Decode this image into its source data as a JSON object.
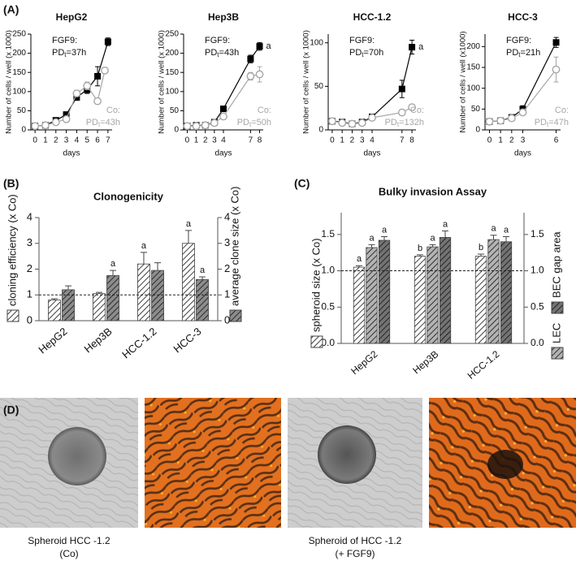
{
  "panel_labels": [
    "(A)",
    "(B)",
    "(C)",
    "(D)"
  ],
  "chart_data": [
    {
      "type": "line",
      "title": "HepG2",
      "x_label": "days",
      "y_label": "Number of cells / well (x 1000)",
      "xlim": [
        -0.4,
        7.4
      ],
      "xticks": [
        0,
        1,
        2,
        3,
        4,
        5,
        6,
        7
      ],
      "ylim": [
        0,
        250
      ],
      "yticks": [
        0,
        50,
        100,
        150,
        200,
        250
      ],
      "series": [
        {
          "name": "FGF9:",
          "pd": "PD",
          "pd_sub": "t",
          "pd_value": "=37h",
          "color": "#000000",
          "marker": "square",
          "x": [
            0,
            1,
            2,
            3,
            4,
            5,
            6,
            7
          ],
          "values": [
            10,
            12,
            25,
            40,
            85,
            105,
            140,
            230
          ],
          "errors": [
            3,
            3,
            5,
            5,
            8,
            10,
            25,
            10
          ]
        },
        {
          "name": "Co:",
          "pd": "PD",
          "pd_sub": "t",
          "pd_value": "=43h",
          "color": "#a6a6a6",
          "marker": "circle",
          "x": [
            0,
            1,
            2,
            3,
            4,
            5,
            6,
            6.7
          ],
          "values": [
            10,
            12,
            20,
            28,
            95,
            115,
            75,
            155
          ],
          "errors": [
            3,
            3,
            3,
            4,
            8,
            10,
            5,
            8
          ]
        }
      ]
    },
    {
      "type": "line",
      "title": "Hep3B",
      "x_label": "days",
      "y_label": "Number of cells / well (x 1000)",
      "xlim": [
        -0.4,
        8.4
      ],
      "xticks": [
        0,
        1,
        2,
        3,
        4,
        7,
        8
      ],
      "ylim": [
        0,
        250
      ],
      "yticks": [
        0,
        50,
        100,
        150,
        200,
        250
      ],
      "series": [
        {
          "name": "FGF9:",
          "pd": "PD",
          "pd_sub": "t",
          "pd_value": "=43h",
          "color": "#000000",
          "marker": "square",
          "end_label": "a",
          "x": [
            0,
            1,
            2,
            3,
            4,
            7,
            8
          ],
          "values": [
            10,
            12,
            12,
            20,
            55,
            185,
            218
          ],
          "errors": [
            2,
            2,
            2,
            3,
            5,
            10,
            10
          ]
        },
        {
          "name": "Co:",
          "pd": "PD",
          "pd_sub": "t",
          "pd_value": "=50h",
          "color": "#a6a6a6",
          "marker": "circle",
          "x": [
            0,
            1,
            2,
            3,
            4,
            7,
            8
          ],
          "values": [
            10,
            10,
            12,
            18,
            35,
            140,
            145
          ],
          "errors": [
            2,
            2,
            2,
            3,
            5,
            10,
            20
          ]
        }
      ]
    },
    {
      "type": "line",
      "title": "HCC-1.2",
      "x_label": "days",
      "y_label": "Number of cells / well (x 1000)",
      "xlim": [
        -0.4,
        8.4
      ],
      "xticks": [
        0,
        1,
        2,
        3,
        4,
        7,
        8
      ],
      "ylim": [
        0,
        110
      ],
      "yticks": [
        0,
        50,
        100
      ],
      "series": [
        {
          "name": "FGF9:",
          "pd": "PD",
          "pd_sub": "t",
          "pd_value": "=70h",
          "color": "#000000",
          "marker": "square",
          "end_label": "a",
          "x": [
            0,
            1,
            2,
            3,
            4,
            7,
            8
          ],
          "values": [
            10,
            9,
            7,
            9,
            15,
            47,
            95
          ],
          "errors": [
            1,
            1,
            1,
            1,
            2,
            10,
            8
          ]
        },
        {
          "name": "Co:",
          "pd": "PD",
          "pd_sub": "t",
          "pd_value": "=132h",
          "color": "#a6a6a6",
          "marker": "circle",
          "x": [
            0,
            1,
            2,
            3,
            4,
            7,
            8
          ],
          "values": [
            10,
            8,
            7,
            8,
            14,
            20,
            26
          ],
          "errors": [
            1,
            1,
            1,
            1,
            2,
            2,
            2
          ]
        }
      ]
    },
    {
      "type": "line",
      "title": "HCC-3",
      "x_label": "days",
      "y_label": "Number of cells / well (x1000)",
      "xlim": [
        -0.4,
        6.4
      ],
      "xticks": [
        0,
        1,
        2,
        3,
        6
      ],
      "ylim": [
        0,
        230
      ],
      "yticks": [
        0,
        50,
        100,
        150,
        200
      ],
      "series": [
        {
          "name": "FGF9:",
          "pd": "PD",
          "pd_sub": "t",
          "pd_value": "=21h",
          "color": "#000000",
          "marker": "square",
          "x": [
            0,
            1,
            2,
            3,
            6
          ],
          "values": [
            20,
            22,
            30,
            50,
            210
          ],
          "errors": [
            2,
            2,
            3,
            8,
            12
          ]
        },
        {
          "name": "Co:",
          "pd": "PD",
          "pd_sub": "t",
          "pd_value": "=47h",
          "color": "#a6a6a6",
          "marker": "circle",
          "x": [
            0,
            1,
            2,
            3,
            6
          ],
          "values": [
            20,
            22,
            28,
            42,
            145
          ],
          "errors": [
            2,
            2,
            3,
            5,
            30
          ]
        }
      ]
    },
    {
      "type": "bar",
      "title": "Clonogenicity",
      "categories": [
        "HepG2",
        "Hep3B",
        "HCC-1.2",
        "HCC-3"
      ],
      "ylim": [
        0,
        4
      ],
      "yticks": [
        0,
        1,
        2,
        3,
        4
      ],
      "y2lim": [
        0,
        4
      ],
      "y2ticks": [
        0,
        1,
        2,
        3,
        4
      ],
      "reference_line": 1,
      "series": [
        {
          "name": "cloning efficiency (x Co)",
          "color": "#ffffff",
          "values": [
            0.8,
            1.05,
            2.2,
            3.0
          ],
          "errors": [
            0.05,
            0.05,
            0.45,
            0.5
          ],
          "sig": [
            null,
            null,
            "a",
            "a"
          ]
        },
        {
          "name": "average clone size (x Co)",
          "color": "#8c8c8c",
          "axis": "y2",
          "values": [
            1.2,
            1.75,
            1.95,
            1.6
          ],
          "errors": [
            0.15,
            0.2,
            0.3,
            0.1
          ],
          "sig": [
            null,
            "a",
            null,
            "a"
          ]
        }
      ]
    },
    {
      "type": "bar",
      "title": "Bulky invasion Assay",
      "categories": [
        "HepG2",
        "Hep3B",
        "HCC-1.2"
      ],
      "ylim": [
        0,
        1.8
      ],
      "yticks": [
        {
          "value": 0,
          "label": "0.0"
        },
        {
          "value": 0.5,
          "label": "0.5"
        },
        {
          "value": 1,
          "label": "1.0"
        },
        {
          "value": 1.5,
          "label": "1.5"
        }
      ],
      "y2lim": [
        0,
        1.8
      ],
      "y2ticks": [
        {
          "value": 0,
          "label": "0.0"
        },
        {
          "value": 0.5,
          "label": "0.5"
        },
        {
          "value": 1,
          "label": "1.0"
        },
        {
          "value": 1.5,
          "label": "1.5"
        }
      ],
      "reference_line": 1,
      "series": [
        {
          "name": "spheroid size (x Co)",
          "color": "#ffffff",
          "values": [
            1.05,
            1.2,
            1.2
          ],
          "errors": [
            0.02,
            0.02,
            0.03
          ],
          "sig": [
            "a",
            "b",
            "b"
          ]
        },
        {
          "name": "LEC",
          "color": "#b3b3b3",
          "axis": "y2",
          "values": [
            1.32,
            1.33,
            1.43
          ],
          "errors": [
            0.04,
            0.03,
            0.06
          ],
          "sig": [
            "a",
            "a",
            "a"
          ]
        },
        {
          "name": "BEC gap area",
          "color": "#737373",
          "axis": "y2",
          "values": [
            1.42,
            1.46,
            1.4
          ],
          "errors": [
            0.05,
            0.09,
            0.07
          ],
          "sig": [
            "a",
            "a",
            "a"
          ]
        }
      ]
    }
  ],
  "photos": {
    "captions": [
      [
        "Spheroid HCC -1.2",
        "(Co)"
      ],
      [
        "Spheroid of HCC -1.2",
        "(+ FGF9)"
      ]
    ]
  }
}
